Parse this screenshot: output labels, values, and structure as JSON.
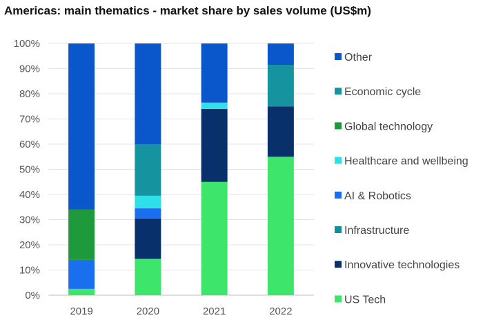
{
  "chart_data": {
    "type": "bar",
    "stacked": true,
    "title": "Americas: main thematics - market share by sales volume (US$m)",
    "categories": [
      "2019",
      "2020",
      "2021",
      "2022"
    ],
    "y_ticks": [
      "0%",
      "10%",
      "20%",
      "30%",
      "40%",
      "50%",
      "60%",
      "70%",
      "80%",
      "90%",
      "100%"
    ],
    "ylim": [
      0,
      100
    ],
    "grid": true,
    "legend_position": "right",
    "series": [
      {
        "name": "US Tech",
        "color": "#3DE66B",
        "values": [
          2.5,
          14.5,
          45,
          55
        ]
      },
      {
        "name": "Innovative technologies",
        "color": "#08306B",
        "values": [
          0,
          16,
          29,
          20
        ]
      },
      {
        "name": "Infrastructure",
        "color": "#0F8F98",
        "values": [
          0,
          0,
          0,
          0
        ]
      },
      {
        "name": "AI & Robotics",
        "color": "#1A6FEF",
        "values": [
          11.5,
          4,
          0,
          0
        ]
      },
      {
        "name": "Healthcare and wellbeing",
        "color": "#2EE0E8",
        "values": [
          0,
          5,
          2.5,
          0
        ]
      },
      {
        "name": "Global technology",
        "color": "#1E9A3C",
        "values": [
          20,
          0,
          0,
          0
        ]
      },
      {
        "name": "Economic cycle",
        "color": "#15939E",
        "values": [
          0,
          20.5,
          0,
          16.5
        ]
      },
      {
        "name": "Other",
        "color": "#0A57CC",
        "values": [
          66,
          40,
          23.5,
          8.5
        ]
      }
    ],
    "legend_order": [
      "Other",
      "Economic cycle",
      "Global technology",
      "Healthcare and wellbeing",
      "AI & Robotics",
      "Infrastructure",
      "Innovative technologies",
      "US Tech"
    ]
  }
}
